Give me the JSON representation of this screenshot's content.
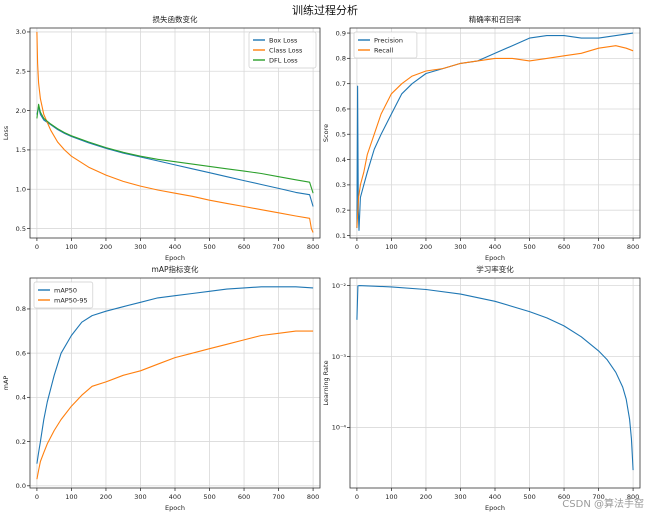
{
  "figure_title": "训练过程分析",
  "watermark": "CSDN @算法手窑",
  "chart_data": [
    {
      "type": "line",
      "title": "损失函数变化",
      "xlabel": "Epoch",
      "ylabel": "Loss",
      "xlim": [
        -20,
        820
      ],
      "ylim": [
        0.38,
        3.05
      ],
      "xticks": [
        0,
        100,
        200,
        300,
        400,
        500,
        600,
        700,
        800
      ],
      "yticks": [
        0.5,
        1.0,
        1.5,
        2.0,
        2.5,
        3.0
      ],
      "ytick_labels": [
        "0.5",
        "1.0",
        "1.5",
        "2.0",
        "2.5",
        "3.0"
      ],
      "grid": true,
      "legend": "upper right",
      "series": [
        {
          "name": "Box Loss",
          "color": "#1f77b4",
          "x": [
            0,
            5,
            10,
            20,
            40,
            60,
            80,
            100,
            150,
            200,
            250,
            300,
            350,
            400,
            450,
            500,
            550,
            600,
            650,
            700,
            750,
            790,
            800
          ],
          "y": [
            1.95,
            2.05,
            1.95,
            1.88,
            1.82,
            1.76,
            1.71,
            1.67,
            1.59,
            1.52,
            1.46,
            1.41,
            1.36,
            1.31,
            1.26,
            1.21,
            1.16,
            1.11,
            1.06,
            1.01,
            0.96,
            0.93,
            0.78
          ]
        },
        {
          "name": "Class Loss",
          "color": "#ff7f0e",
          "x": [
            0,
            2,
            5,
            10,
            20,
            40,
            60,
            80,
            100,
            150,
            200,
            250,
            300,
            350,
            400,
            450,
            500,
            550,
            600,
            650,
            700,
            750,
            790,
            795,
            800
          ],
          "y": [
            3.0,
            2.6,
            2.35,
            2.15,
            1.95,
            1.75,
            1.6,
            1.5,
            1.42,
            1.28,
            1.18,
            1.1,
            1.04,
            0.99,
            0.95,
            0.91,
            0.86,
            0.82,
            0.78,
            0.74,
            0.7,
            0.66,
            0.63,
            0.5,
            0.45
          ]
        },
        {
          "name": "DFL Loss",
          "color": "#2ca02c",
          "x": [
            0,
            5,
            10,
            20,
            40,
            60,
            80,
            100,
            150,
            200,
            250,
            300,
            350,
            400,
            450,
            500,
            550,
            600,
            650,
            700,
            750,
            790,
            800
          ],
          "y": [
            1.9,
            2.08,
            1.98,
            1.9,
            1.83,
            1.77,
            1.72,
            1.68,
            1.6,
            1.53,
            1.47,
            1.42,
            1.38,
            1.35,
            1.32,
            1.29,
            1.26,
            1.23,
            1.2,
            1.16,
            1.12,
            1.09,
            0.95
          ]
        }
      ]
    },
    {
      "type": "line",
      "title": "精确率和召回率",
      "xlabel": "Epoch",
      "ylabel": "Score",
      "xlim": [
        -20,
        820
      ],
      "ylim": [
        0.09,
        0.92
      ],
      "xticks": [
        0,
        100,
        200,
        300,
        400,
        500,
        600,
        700,
        800
      ],
      "yticks": [
        0.1,
        0.2,
        0.3,
        0.4,
        0.5,
        0.6,
        0.7,
        0.8,
        0.9
      ],
      "ytick_labels": [
        "0.1",
        "0.2",
        "0.3",
        "0.4",
        "0.5",
        "0.6",
        "0.7",
        "0.8",
        "0.9"
      ],
      "grid": true,
      "legend": "upper left",
      "series": [
        {
          "name": "Precision",
          "color": "#1f77b4",
          "x": [
            0,
            2,
            4,
            6,
            10,
            20,
            30,
            50,
            70,
            100,
            130,
            160,
            200,
            250,
            300,
            350,
            400,
            450,
            500,
            550,
            600,
            650,
            700,
            750,
            800
          ],
          "y": [
            0.13,
            0.69,
            0.2,
            0.12,
            0.25,
            0.3,
            0.35,
            0.44,
            0.5,
            0.58,
            0.66,
            0.7,
            0.74,
            0.76,
            0.78,
            0.79,
            0.82,
            0.85,
            0.88,
            0.89,
            0.89,
            0.88,
            0.88,
            0.89,
            0.9
          ]
        },
        {
          "name": "Recall",
          "color": "#ff7f0e",
          "x": [
            0,
            5,
            10,
            20,
            30,
            50,
            70,
            100,
            130,
            160,
            200,
            250,
            300,
            350,
            400,
            450,
            500,
            550,
            600,
            650,
            700,
            750,
            780,
            800
          ],
          "y": [
            0.13,
            0.25,
            0.3,
            0.35,
            0.42,
            0.5,
            0.58,
            0.66,
            0.7,
            0.73,
            0.75,
            0.76,
            0.78,
            0.79,
            0.8,
            0.8,
            0.79,
            0.8,
            0.81,
            0.82,
            0.84,
            0.85,
            0.84,
            0.83
          ]
        }
      ]
    },
    {
      "type": "line",
      "title": "mAP指标变化",
      "xlabel": "Epoch",
      "ylabel": "mAP",
      "xlim": [
        -20,
        820
      ],
      "ylim": [
        -0.01,
        0.94
      ],
      "xticks": [
        0,
        100,
        200,
        300,
        400,
        500,
        600,
        700,
        800
      ],
      "yticks": [
        0.0,
        0.2,
        0.4,
        0.6,
        0.8
      ],
      "ytick_labels": [
        "0.0",
        "0.2",
        "0.4",
        "0.6",
        "0.8"
      ],
      "grid": true,
      "legend": "upper left",
      "series": [
        {
          "name": "mAP50",
          "color": "#1f77b4",
          "x": [
            0,
            5,
            10,
            20,
            30,
            50,
            70,
            100,
            130,
            160,
            200,
            250,
            300,
            350,
            400,
            450,
            500,
            550,
            600,
            650,
            700,
            750,
            800
          ],
          "y": [
            0.1,
            0.15,
            0.2,
            0.3,
            0.38,
            0.5,
            0.6,
            0.68,
            0.74,
            0.77,
            0.79,
            0.81,
            0.83,
            0.85,
            0.86,
            0.87,
            0.88,
            0.89,
            0.895,
            0.9,
            0.9,
            0.9,
            0.895
          ]
        },
        {
          "name": "mAP50-95",
          "color": "#ff7f0e",
          "x": [
            0,
            5,
            10,
            20,
            30,
            50,
            70,
            100,
            130,
            160,
            200,
            250,
            300,
            350,
            400,
            450,
            500,
            550,
            600,
            650,
            700,
            750,
            800
          ],
          "y": [
            0.03,
            0.07,
            0.11,
            0.15,
            0.19,
            0.25,
            0.3,
            0.36,
            0.41,
            0.45,
            0.47,
            0.5,
            0.52,
            0.55,
            0.58,
            0.6,
            0.62,
            0.64,
            0.66,
            0.68,
            0.69,
            0.7,
            0.7
          ]
        }
      ]
    },
    {
      "type": "line",
      "title": "学习率变化",
      "xlabel": "Epoch",
      "ylabel": "Learning Rate",
      "yscale": "log",
      "xlim": [
        -20,
        820
      ],
      "ylim": [
        1.4e-05,
        0.0128
      ],
      "xticks": [
        0,
        100,
        200,
        300,
        400,
        500,
        600,
        700,
        800
      ],
      "yticks": [
        0.0001,
        0.001,
        0.01
      ],
      "ytick_labels": [
        "10⁻⁴",
        "10⁻³",
        "10⁻²"
      ],
      "grid": true,
      "series": [
        {
          "name": "",
          "color": "#1f77b4",
          "x": [
            0,
            3,
            6,
            50,
            100,
            200,
            300,
            400,
            500,
            550,
            600,
            650,
            700,
            725,
            750,
            770,
            780,
            790,
            795,
            800
          ],
          "y": [
            0.0033,
            0.0099,
            0.01,
            0.0098,
            0.0096,
            0.0088,
            0.0076,
            0.006,
            0.0043,
            0.0035,
            0.0027,
            0.0019,
            0.0012,
            0.0009,
            0.0006,
            0.00037,
            0.00025,
            0.00013,
            7e-05,
            2.5e-05
          ]
        }
      ]
    }
  ]
}
